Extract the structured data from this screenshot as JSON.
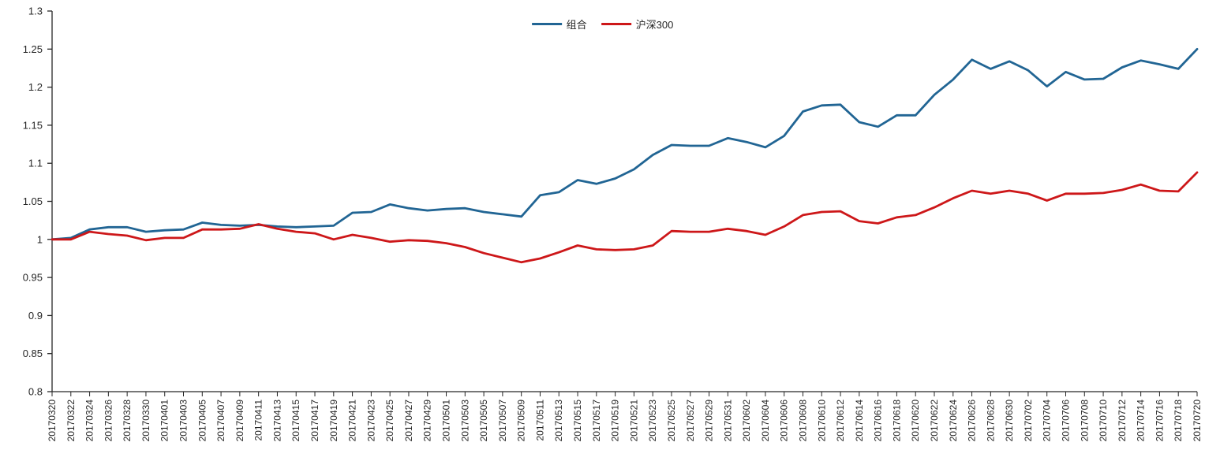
{
  "chart_data": {
    "type": "line",
    "title": "",
    "xlabel": "",
    "ylabel": "",
    "ylim": [
      0.8,
      1.3
    ],
    "yticks": [
      0.8,
      0.85,
      0.9,
      0.95,
      1.0,
      1.05,
      1.1,
      1.15,
      1.2,
      1.25,
      1.3
    ],
    "ytick_labels": [
      "0.8",
      "0.85",
      "0.9",
      "0.95",
      "1",
      "1.05",
      "1.1",
      "1.15",
      "1.2",
      "1.25",
      "1.3"
    ],
    "grid": false,
    "legend_position": "top-center",
    "background_color": "#ffffff",
    "axis_color": "#262626",
    "tick_label_color": "#262626",
    "x_labels_rotation_deg": -90,
    "categories": [
      "20170320",
      "20170322",
      "20170324",
      "20170326",
      "20170328",
      "20170330",
      "20170401",
      "20170403",
      "20170405",
      "20170407",
      "20170409",
      "20170411",
      "20170413",
      "20170415",
      "20170417",
      "20170419",
      "20170421",
      "20170423",
      "20170425",
      "20170427",
      "20170429",
      "20170501",
      "20170503",
      "20170505",
      "20170507",
      "20170509",
      "20170511",
      "20170513",
      "20170515",
      "20170517",
      "20170519",
      "20170521",
      "20170523",
      "20170525",
      "20170527",
      "20170529",
      "20170531",
      "20170602",
      "20170604",
      "20170606",
      "20170608",
      "20170610",
      "20170612",
      "20170614",
      "20170616",
      "20170618",
      "20170620",
      "20170622",
      "20170624",
      "20170626",
      "20170628",
      "20170630",
      "20170702",
      "20170704",
      "20170706",
      "20170708",
      "20170710",
      "20170712",
      "20170714",
      "20170716",
      "20170718",
      "20170720"
    ],
    "series": [
      {
        "name": "组合",
        "color": "#216594",
        "line_width": 2.8,
        "values": [
          1.0,
          1.002,
          1.013,
          1.016,
          1.016,
          1.01,
          1.012,
          1.013,
          1.022,
          1.019,
          1.018,
          1.019,
          1.017,
          1.016,
          1.017,
          1.018,
          1.035,
          1.036,
          1.046,
          1.041,
          1.038,
          1.04,
          1.041,
          1.036,
          1.033,
          1.03,
          1.058,
          1.062,
          1.078,
          1.073,
          1.08,
          1.092,
          1.111,
          1.124,
          1.123,
          1.123,
          1.133,
          1.128,
          1.121,
          1.136,
          1.168,
          1.176,
          1.177,
          1.154,
          1.148,
          1.163,
          1.163,
          1.19,
          1.21,
          1.236,
          1.224,
          1.234,
          1.222,
          1.201,
          1.22,
          1.21,
          1.211,
          1.226,
          1.235,
          1.23,
          1.224,
          1.25
        ]
      },
      {
        "name": "沪深300",
        "color": "#CD1719",
        "line_width": 2.8,
        "values": [
          1.0,
          1.0,
          1.01,
          1.007,
          1.005,
          0.999,
          1.002,
          1.002,
          1.013,
          1.013,
          1.014,
          1.02,
          1.014,
          1.01,
          1.008,
          1.0,
          1.006,
          1.002,
          0.997,
          0.999,
          0.998,
          0.995,
          0.99,
          0.982,
          0.976,
          0.97,
          0.975,
          0.983,
          0.992,
          0.987,
          0.986,
          0.987,
          0.992,
          1.011,
          1.01,
          1.01,
          1.014,
          1.011,
          1.006,
          1.017,
          1.032,
          1.036,
          1.037,
          1.024,
          1.021,
          1.029,
          1.032,
          1.042,
          1.054,
          1.064,
          1.06,
          1.064,
          1.06,
          1.051,
          1.06,
          1.06,
          1.061,
          1.065,
          1.072,
          1.064,
          1.063,
          1.088
        ]
      }
    ]
  }
}
